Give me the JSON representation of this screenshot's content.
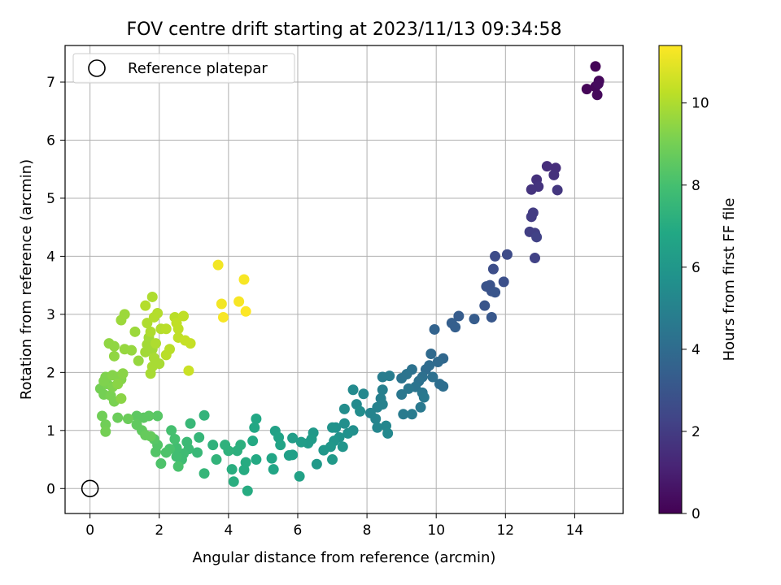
{
  "chart_data": {
    "type": "scatter",
    "title": "FOV centre drift starting at 2023/11/13 09:34:58",
    "xlabel": "Angular distance from reference (arcmin)",
    "ylabel": "Rotation from reference (arcmin)",
    "xlim": [
      -0.72,
      15.4
    ],
    "ylim": [
      -0.43,
      7.63
    ],
    "xticks": [
      0,
      2,
      4,
      6,
      8,
      10,
      12,
      14
    ],
    "yticks": [
      0,
      1,
      2,
      3,
      4,
      5,
      6,
      7
    ],
    "grid": true,
    "legend": {
      "placement": "top-left",
      "entries": [
        "Reference platepar"
      ]
    },
    "reference_point": {
      "x": 0,
      "y": 0,
      "label": "Reference platepar"
    },
    "colorbar": {
      "label": "Hours from first FF file",
      "colormap": "viridis",
      "range": [
        0,
        11.4
      ],
      "ticks": [
        0,
        2,
        4,
        6,
        8,
        10
      ]
    },
    "points": [
      {
        "x": 14.6,
        "y": 7.27,
        "c": 0.1
      },
      {
        "x": 14.35,
        "y": 6.88,
        "c": 0.15
      },
      {
        "x": 14.6,
        "y": 6.92,
        "c": 0.2
      },
      {
        "x": 14.7,
        "y": 7.02,
        "c": 0.2
      },
      {
        "x": 14.65,
        "y": 6.78,
        "c": 0.25
      },
      {
        "x": 14.68,
        "y": 6.97,
        "c": 0.3
      },
      {
        "x": 13.2,
        "y": 5.55,
        "c": 1.5
      },
      {
        "x": 13.45,
        "y": 5.52,
        "c": 1.5
      },
      {
        "x": 13.4,
        "y": 5.4,
        "c": 1.6
      },
      {
        "x": 12.9,
        "y": 5.32,
        "c": 1.6
      },
      {
        "x": 12.95,
        "y": 5.2,
        "c": 1.7
      },
      {
        "x": 12.75,
        "y": 5.15,
        "c": 1.7
      },
      {
        "x": 13.5,
        "y": 5.14,
        "c": 1.8
      },
      {
        "x": 12.8,
        "y": 4.75,
        "c": 2.0
      },
      {
        "x": 12.75,
        "y": 4.68,
        "c": 2.0
      },
      {
        "x": 12.7,
        "y": 4.42,
        "c": 2.1
      },
      {
        "x": 12.85,
        "y": 4.4,
        "c": 2.1
      },
      {
        "x": 12.9,
        "y": 4.33,
        "c": 2.2
      },
      {
        "x": 12.85,
        "y": 3.97,
        "c": 2.2
      },
      {
        "x": 11.7,
        "y": 4.0,
        "c": 2.6
      },
      {
        "x": 12.05,
        "y": 4.03,
        "c": 2.6
      },
      {
        "x": 11.65,
        "y": 3.78,
        "c": 2.7
      },
      {
        "x": 11.95,
        "y": 3.56,
        "c": 2.8
      },
      {
        "x": 11.45,
        "y": 3.48,
        "c": 2.9
      },
      {
        "x": 11.55,
        "y": 3.5,
        "c": 2.9
      },
      {
        "x": 11.6,
        "y": 3.4,
        "c": 2.9
      },
      {
        "x": 11.7,
        "y": 3.38,
        "c": 3.0
      },
      {
        "x": 11.4,
        "y": 3.15,
        "c": 3.0
      },
      {
        "x": 11.6,
        "y": 2.95,
        "c": 3.1
      },
      {
        "x": 10.65,
        "y": 2.97,
        "c": 3.3
      },
      {
        "x": 10.45,
        "y": 2.85,
        "c": 3.4
      },
      {
        "x": 10.55,
        "y": 2.78,
        "c": 3.4
      },
      {
        "x": 11.1,
        "y": 2.92,
        "c": 3.3
      },
      {
        "x": 9.95,
        "y": 2.74,
        "c": 3.6
      },
      {
        "x": 10.2,
        "y": 2.24,
        "c": 3.8
      },
      {
        "x": 9.85,
        "y": 2.32,
        "c": 3.9
      },
      {
        "x": 10.05,
        "y": 2.18,
        "c": 3.9
      },
      {
        "x": 9.8,
        "y": 2.12,
        "c": 4.0
      },
      {
        "x": 9.7,
        "y": 2.05,
        "c": 4.0
      },
      {
        "x": 10.1,
        "y": 1.8,
        "c": 4.1
      },
      {
        "x": 10.2,
        "y": 1.76,
        "c": 4.1
      },
      {
        "x": 9.9,
        "y": 1.92,
        "c": 4.2
      },
      {
        "x": 9.6,
        "y": 1.92,
        "c": 4.2
      },
      {
        "x": 9.5,
        "y": 1.85,
        "c": 4.3
      },
      {
        "x": 9.3,
        "y": 2.05,
        "c": 4.3
      },
      {
        "x": 9.15,
        "y": 1.97,
        "c": 4.4
      },
      {
        "x": 9.0,
        "y": 1.9,
        "c": 4.4
      },
      {
        "x": 9.4,
        "y": 1.75,
        "c": 4.4
      },
      {
        "x": 9.2,
        "y": 1.72,
        "c": 4.5
      },
      {
        "x": 9.0,
        "y": 1.62,
        "c": 4.5
      },
      {
        "x": 9.6,
        "y": 1.65,
        "c": 4.5
      },
      {
        "x": 9.65,
        "y": 1.57,
        "c": 4.6
      },
      {
        "x": 9.55,
        "y": 1.4,
        "c": 4.6
      },
      {
        "x": 9.3,
        "y": 1.28,
        "c": 4.7
      },
      {
        "x": 9.05,
        "y": 1.28,
        "c": 4.7
      },
      {
        "x": 8.65,
        "y": 1.94,
        "c": 4.8
      },
      {
        "x": 8.45,
        "y": 1.92,
        "c": 4.8
      },
      {
        "x": 8.45,
        "y": 1.7,
        "c": 4.9
      },
      {
        "x": 8.4,
        "y": 1.55,
        "c": 4.9
      },
      {
        "x": 8.45,
        "y": 1.45,
        "c": 5.0
      },
      {
        "x": 8.3,
        "y": 1.4,
        "c": 5.0
      },
      {
        "x": 8.1,
        "y": 1.3,
        "c": 5.1
      },
      {
        "x": 8.25,
        "y": 1.2,
        "c": 5.1
      },
      {
        "x": 8.55,
        "y": 1.08,
        "c": 5.2
      },
      {
        "x": 8.3,
        "y": 1.05,
        "c": 5.2
      },
      {
        "x": 8.6,
        "y": 0.95,
        "c": 5.3
      },
      {
        "x": 7.9,
        "y": 1.63,
        "c": 5.3
      },
      {
        "x": 7.6,
        "y": 1.7,
        "c": 5.4
      },
      {
        "x": 7.7,
        "y": 1.45,
        "c": 5.4
      },
      {
        "x": 7.8,
        "y": 1.33,
        "c": 5.5
      },
      {
        "x": 7.35,
        "y": 1.37,
        "c": 5.5
      },
      {
        "x": 7.35,
        "y": 1.12,
        "c": 5.6
      },
      {
        "x": 7.6,
        "y": 1.0,
        "c": 5.6
      },
      {
        "x": 7.45,
        "y": 0.95,
        "c": 5.7
      },
      {
        "x": 7.1,
        "y": 1.05,
        "c": 5.7
      },
      {
        "x": 7.0,
        "y": 1.05,
        "c": 5.8
      },
      {
        "x": 7.2,
        "y": 0.88,
        "c": 5.8
      },
      {
        "x": 7.05,
        "y": 0.82,
        "c": 5.9
      },
      {
        "x": 7.3,
        "y": 0.72,
        "c": 5.9
      },
      {
        "x": 6.95,
        "y": 0.72,
        "c": 6.0
      },
      {
        "x": 6.75,
        "y": 0.66,
        "c": 6.0
      },
      {
        "x": 7.0,
        "y": 0.5,
        "c": 6.1
      },
      {
        "x": 6.55,
        "y": 0.42,
        "c": 6.1
      },
      {
        "x": 6.45,
        "y": 0.96,
        "c": 6.1
      },
      {
        "x": 6.4,
        "y": 0.85,
        "c": 6.2
      },
      {
        "x": 6.3,
        "y": 0.78,
        "c": 6.2
      },
      {
        "x": 6.1,
        "y": 0.8,
        "c": 6.3
      },
      {
        "x": 5.85,
        "y": 0.87,
        "c": 6.3
      },
      {
        "x": 5.85,
        "y": 0.58,
        "c": 6.4
      },
      {
        "x": 5.75,
        "y": 0.57,
        "c": 6.4
      },
      {
        "x": 6.05,
        "y": 0.21,
        "c": 6.5
      },
      {
        "x": 5.35,
        "y": 0.99,
        "c": 6.5
      },
      {
        "x": 5.45,
        "y": 0.88,
        "c": 6.6
      },
      {
        "x": 5.5,
        "y": 0.75,
        "c": 6.6
      },
      {
        "x": 5.25,
        "y": 0.52,
        "c": 6.7
      },
      {
        "x": 5.3,
        "y": 0.33,
        "c": 6.7
      },
      {
        "x": 4.8,
        "y": 1.2,
        "c": 6.8
      },
      {
        "x": 4.75,
        "y": 1.05,
        "c": 6.8
      },
      {
        "x": 4.7,
        "y": 0.82,
        "c": 6.9
      },
      {
        "x": 4.8,
        "y": 0.5,
        "c": 6.9
      },
      {
        "x": 4.5,
        "y": 0.45,
        "c": 7.0
      },
      {
        "x": 4.45,
        "y": 0.32,
        "c": 7.0
      },
      {
        "x": 4.55,
        "y": -0.04,
        "c": 7.0
      },
      {
        "x": 4.15,
        "y": 0.12,
        "c": 7.1
      },
      {
        "x": 4.1,
        "y": 0.33,
        "c": 7.1
      },
      {
        "x": 4.35,
        "y": 0.75,
        "c": 7.2
      },
      {
        "x": 4.25,
        "y": 0.65,
        "c": 7.2
      },
      {
        "x": 4.0,
        "y": 0.65,
        "c": 7.3
      },
      {
        "x": 3.9,
        "y": 0.75,
        "c": 7.3
      },
      {
        "x": 3.55,
        "y": 0.75,
        "c": 7.3
      },
      {
        "x": 3.65,
        "y": 0.5,
        "c": 7.4
      },
      {
        "x": 3.3,
        "y": 1.26,
        "c": 7.4
      },
      {
        "x": 3.3,
        "y": 0.26,
        "c": 7.5
      },
      {
        "x": 3.15,
        "y": 0.88,
        "c": 7.5
      },
      {
        "x": 3.1,
        "y": 0.62,
        "c": 7.6
      },
      {
        "x": 2.9,
        "y": 1.12,
        "c": 7.6
      },
      {
        "x": 2.8,
        "y": 0.8,
        "c": 7.7
      },
      {
        "x": 2.85,
        "y": 0.68,
        "c": 7.7
      },
      {
        "x": 2.7,
        "y": 0.6,
        "c": 7.8
      },
      {
        "x": 2.65,
        "y": 0.5,
        "c": 7.8
      },
      {
        "x": 2.5,
        "y": 0.55,
        "c": 7.9
      },
      {
        "x": 2.5,
        "y": 0.7,
        "c": 7.9
      },
      {
        "x": 2.45,
        "y": 0.85,
        "c": 8.0
      },
      {
        "x": 2.35,
        "y": 1.0,
        "c": 8.0
      },
      {
        "x": 2.55,
        "y": 0.38,
        "c": 8.1
      },
      {
        "x": 2.3,
        "y": 0.68,
        "c": 8.1
      },
      {
        "x": 2.2,
        "y": 0.62,
        "c": 8.2
      },
      {
        "x": 2.05,
        "y": 0.43,
        "c": 8.2
      },
      {
        "x": 1.9,
        "y": 0.63,
        "c": 8.3
      },
      {
        "x": 1.95,
        "y": 0.75,
        "c": 8.3
      },
      {
        "x": 1.85,
        "y": 0.85,
        "c": 8.4
      },
      {
        "x": 1.95,
        "y": 1.25,
        "c": 8.4
      },
      {
        "x": 1.7,
        "y": 1.25,
        "c": 8.5
      },
      {
        "x": 1.55,
        "y": 1.22,
        "c": 8.5
      },
      {
        "x": 1.35,
        "y": 1.25,
        "c": 8.5
      },
      {
        "x": 1.35,
        "y": 1.1,
        "c": 8.6
      },
      {
        "x": 1.5,
        "y": 1.0,
        "c": 8.6
      },
      {
        "x": 1.6,
        "y": 0.92,
        "c": 8.7
      },
      {
        "x": 1.75,
        "y": 0.9,
        "c": 8.7
      },
      {
        "x": 1.1,
        "y": 1.2,
        "c": 8.8
      },
      {
        "x": 0.8,
        "y": 1.22,
        "c": 8.8
      },
      {
        "x": 0.35,
        "y": 1.25,
        "c": 8.9
      },
      {
        "x": 0.45,
        "y": 1.1,
        "c": 8.9
      },
      {
        "x": 0.45,
        "y": 0.98,
        "c": 9.0
      },
      {
        "x": 0.3,
        "y": 1.72,
        "c": 9.0
      },
      {
        "x": 0.4,
        "y": 1.62,
        "c": 9.0
      },
      {
        "x": 0.6,
        "y": 1.6,
        "c": 9.1
      },
      {
        "x": 0.7,
        "y": 1.5,
        "c": 9.1
      },
      {
        "x": 0.5,
        "y": 1.8,
        "c": 9.1
      },
      {
        "x": 0.65,
        "y": 1.75,
        "c": 9.2
      },
      {
        "x": 0.4,
        "y": 1.85,
        "c": 9.2
      },
      {
        "x": 0.45,
        "y": 1.92,
        "c": 9.2
      },
      {
        "x": 0.65,
        "y": 1.95,
        "c": 9.3
      },
      {
        "x": 0.8,
        "y": 1.92,
        "c": 9.3
      },
      {
        "x": 0.9,
        "y": 1.88,
        "c": 9.3
      },
      {
        "x": 0.95,
        "y": 1.98,
        "c": 9.4
      },
      {
        "x": 0.9,
        "y": 1.55,
        "c": 9.4
      },
      {
        "x": 0.8,
        "y": 1.8,
        "c": 9.4
      },
      {
        "x": 0.7,
        "y": 2.28,
        "c": 9.5
      },
      {
        "x": 0.55,
        "y": 2.5,
        "c": 9.5
      },
      {
        "x": 0.7,
        "y": 2.45,
        "c": 9.5
      },
      {
        "x": 1.0,
        "y": 2.4,
        "c": 9.6
      },
      {
        "x": 1.2,
        "y": 2.38,
        "c": 9.6
      },
      {
        "x": 1.4,
        "y": 2.2,
        "c": 9.6
      },
      {
        "x": 0.9,
        "y": 2.9,
        "c": 9.7
      },
      {
        "x": 1.0,
        "y": 3.0,
        "c": 9.7
      },
      {
        "x": 1.3,
        "y": 2.7,
        "c": 9.7
      },
      {
        "x": 1.6,
        "y": 2.35,
        "c": 9.8
      },
      {
        "x": 1.65,
        "y": 2.48,
        "c": 9.8
      },
      {
        "x": 1.7,
        "y": 2.6,
        "c": 9.8
      },
      {
        "x": 1.8,
        "y": 2.4,
        "c": 9.8
      },
      {
        "x": 1.85,
        "y": 2.25,
        "c": 9.9
      },
      {
        "x": 1.8,
        "y": 2.1,
        "c": 9.9
      },
      {
        "x": 1.75,
        "y": 1.98,
        "c": 9.9
      },
      {
        "x": 2.0,
        "y": 2.15,
        "c": 9.9
      },
      {
        "x": 1.9,
        "y": 2.5,
        "c": 10.0
      },
      {
        "x": 1.65,
        "y": 2.85,
        "c": 10.0
      },
      {
        "x": 1.75,
        "y": 2.7,
        "c": 10.0
      },
      {
        "x": 1.8,
        "y": 3.3,
        "c": 10.0
      },
      {
        "x": 1.6,
        "y": 3.15,
        "c": 10.1
      },
      {
        "x": 1.85,
        "y": 2.95,
        "c": 10.1
      },
      {
        "x": 1.95,
        "y": 3.02,
        "c": 10.1
      },
      {
        "x": 2.05,
        "y": 2.75,
        "c": 10.1
      },
      {
        "x": 2.2,
        "y": 2.75,
        "c": 10.2
      },
      {
        "x": 2.3,
        "y": 2.4,
        "c": 10.2
      },
      {
        "x": 2.2,
        "y": 2.3,
        "c": 10.2
      },
      {
        "x": 2.45,
        "y": 2.95,
        "c": 10.2
      },
      {
        "x": 2.5,
        "y": 2.85,
        "c": 10.3
      },
      {
        "x": 2.55,
        "y": 2.75,
        "c": 10.3
      },
      {
        "x": 2.7,
        "y": 2.97,
        "c": 10.3
      },
      {
        "x": 2.55,
        "y": 2.6,
        "c": 10.3
      },
      {
        "x": 2.75,
        "y": 2.55,
        "c": 10.4
      },
      {
        "x": 2.9,
        "y": 2.5,
        "c": 10.4
      },
      {
        "x": 2.85,
        "y": 2.03,
        "c": 10.5
      },
      {
        "x": 3.7,
        "y": 3.85,
        "c": 11.2
      },
      {
        "x": 3.8,
        "y": 3.18,
        "c": 11.2
      },
      {
        "x": 3.85,
        "y": 2.95,
        "c": 11.3
      },
      {
        "x": 4.45,
        "y": 3.6,
        "c": 11.3
      },
      {
        "x": 4.3,
        "y": 3.22,
        "c": 11.3
      },
      {
        "x": 4.5,
        "y": 3.05,
        "c": 11.4
      }
    ]
  }
}
